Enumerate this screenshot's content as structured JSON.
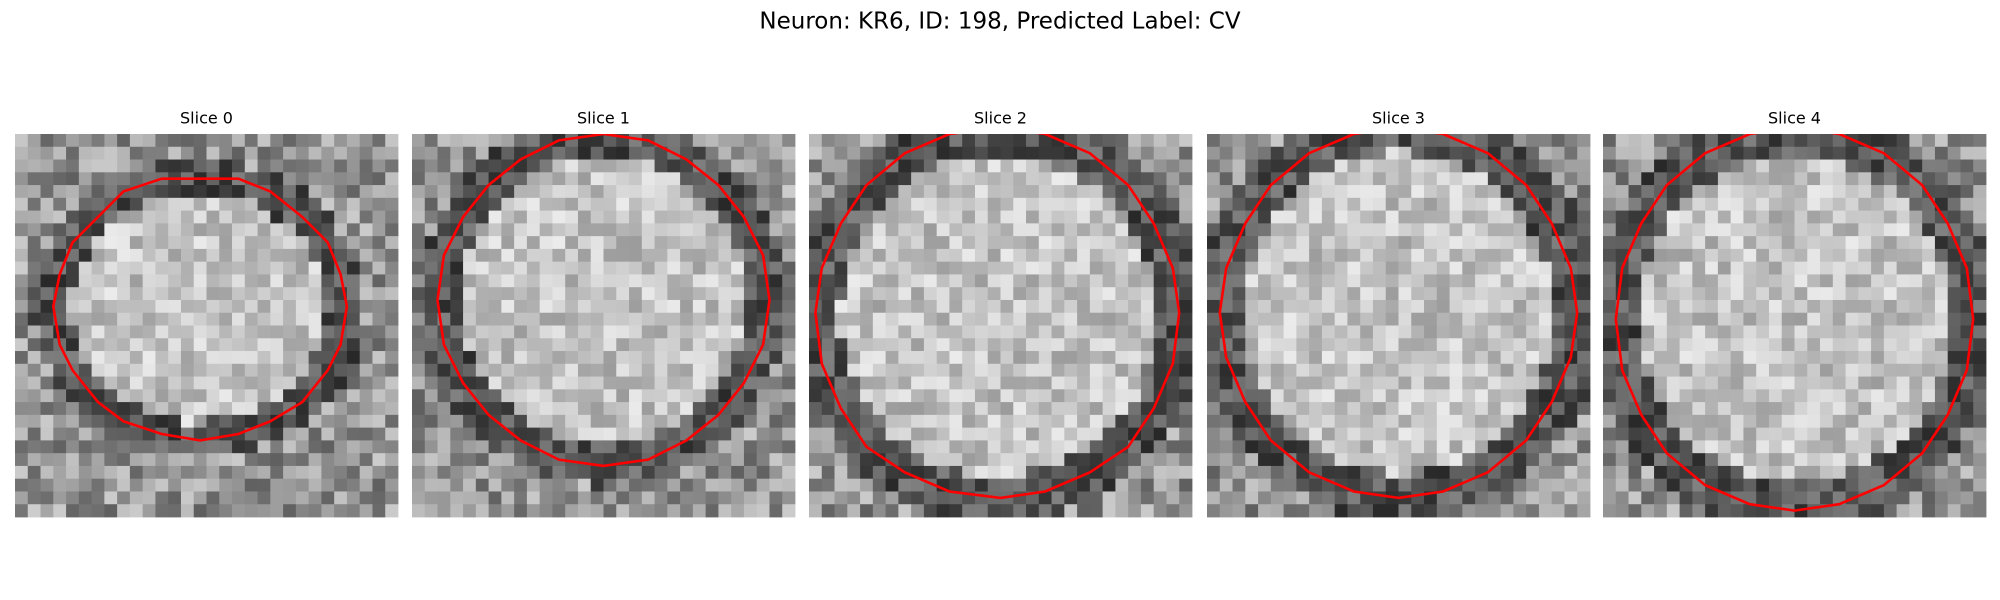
{
  "title": "Neuron: KR6, ID: 198, Predicted Label: CV",
  "panels": [
    {
      "title": "Slice 0"
    },
    {
      "title": "Slice 1"
    },
    {
      "title": "Slice 2"
    },
    {
      "title": "Slice 3"
    },
    {
      "title": "Slice 4"
    }
  ]
}
